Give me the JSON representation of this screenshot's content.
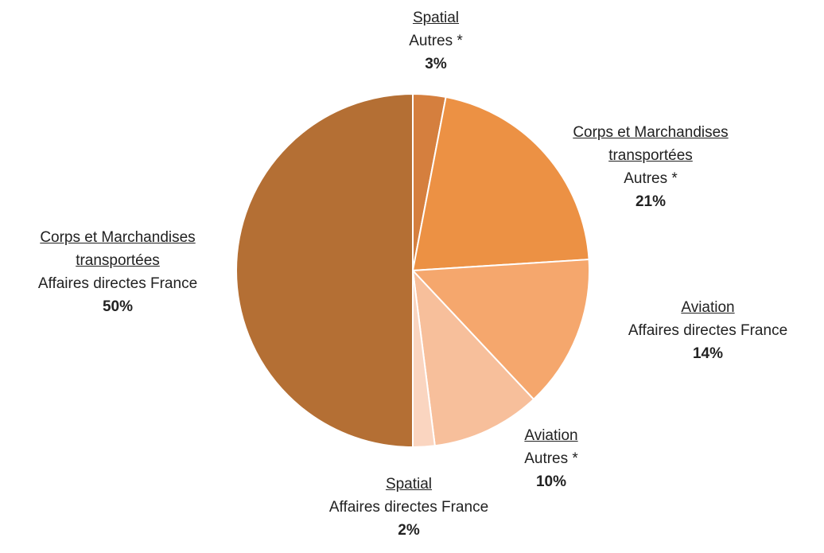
{
  "chart_data": {
    "type": "pie",
    "categories": [
      "Spatial",
      "Corps et Marchandises transportées",
      "Aviation",
      "Aviation",
      "Spatial",
      "Corps et Marchandises transportées"
    ],
    "subcategories": [
      "Autres *",
      "Autres *",
      "Affaires directes France",
      "Autres *",
      "Affaires directes France",
      "Affaires directes France"
    ],
    "values": [
      3,
      21,
      14,
      10,
      2,
      50
    ],
    "value_labels": [
      "3%",
      "21%",
      "14%",
      "10%",
      "2%",
      "50%"
    ],
    "colors": [
      "#d57f3e",
      "#ec9144",
      "#f5a76d",
      "#f7bf9b",
      "#fad5c0",
      "#b46f34"
    ]
  }
}
